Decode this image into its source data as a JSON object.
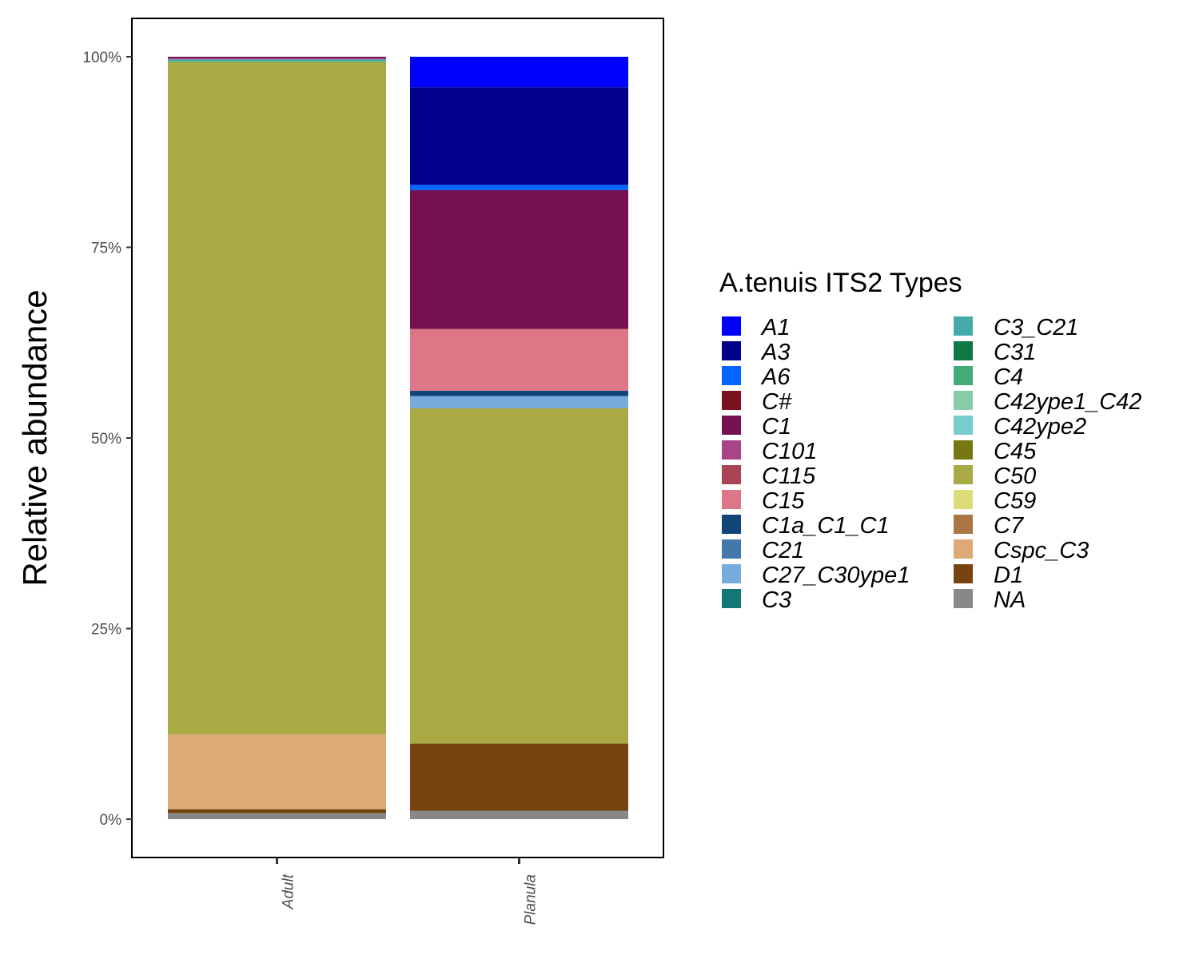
{
  "chart_data": {
    "type": "bar",
    "stacked": true,
    "categories": [
      "Adult",
      "Planula"
    ],
    "ylabel": "Relative abundance",
    "xlabel": "",
    "ylim": [
      0,
      1
    ],
    "yticks": [
      "0%",
      "25%",
      "50%",
      "75%",
      "100%"
    ],
    "legend_title": "A.tenuis ITS2 Types",
    "legend_position": "right",
    "grid": false,
    "series": [
      {
        "name": "A1",
        "color": "#0000ff",
        "values": [
          0.0,
          0.04
        ]
      },
      {
        "name": "A3",
        "color": "#00008b",
        "values": [
          0.0,
          0.128
        ]
      },
      {
        "name": "A6",
        "color": "#0066ff",
        "values": [
          0.0,
          0.007
        ]
      },
      {
        "name": "C#",
        "color": "#7a1020",
        "values": [
          0.0,
          0.0
        ]
      },
      {
        "name": "C1",
        "color": "#741251",
        "values": [
          0.002,
          0.182
        ]
      },
      {
        "name": "C101",
        "color": "#aa4488",
        "values": [
          0.0015,
          0.0
        ]
      },
      {
        "name": "C115",
        "color": "#aa4455",
        "values": [
          0.0,
          0.0
        ]
      },
      {
        "name": "C15",
        "color": "#dd7788",
        "values": [
          0.0,
          0.081
        ]
      },
      {
        "name": "C1a_C1_C1",
        "color": "#114477",
        "values": [
          0.0,
          0.007
        ]
      },
      {
        "name": "C21",
        "color": "#4477aa",
        "values": [
          0.0,
          0.0
        ]
      },
      {
        "name": "C27_C30ype1",
        "color": "#77aadd",
        "values": [
          0.0,
          0.016
        ]
      },
      {
        "name": "C3",
        "color": "#117777",
        "values": [
          0.0,
          0.0
        ]
      },
      {
        "name": "C3_C21",
        "color": "#44aaaa",
        "values": [
          0.002,
          0.0
        ]
      },
      {
        "name": "C31",
        "color": "#117744",
        "values": [
          0.0,
          0.0
        ]
      },
      {
        "name": "C4",
        "color": "#44aa77",
        "values": [
          0.0015,
          0.0
        ]
      },
      {
        "name": "C42ype1_C42",
        "color": "#88ccaa",
        "values": [
          0.0,
          0.0
        ]
      },
      {
        "name": "C42ype2",
        "color": "#77cccc",
        "values": [
          0.0,
          0.0
        ]
      },
      {
        "name": "C45",
        "color": "#777711",
        "values": [
          0.0,
          0.0
        ]
      },
      {
        "name": "C50",
        "color": "#aaaa44",
        "values": [
          0.882,
          0.44
        ]
      },
      {
        "name": "C59",
        "color": "#dddd77",
        "values": [
          0.0,
          0.0
        ]
      },
      {
        "name": "C7",
        "color": "#aa7744",
        "values": [
          0.0,
          0.0
        ]
      },
      {
        "name": "Cspc_C3",
        "color": "#ddaa77",
        "values": [
          0.098,
          0.0
        ]
      },
      {
        "name": "D1",
        "color": "#774411",
        "values": [
          0.005,
          0.088
        ]
      },
      {
        "name": "NA",
        "color": "#888888",
        "values": [
          0.008,
          0.011
        ]
      }
    ]
  }
}
